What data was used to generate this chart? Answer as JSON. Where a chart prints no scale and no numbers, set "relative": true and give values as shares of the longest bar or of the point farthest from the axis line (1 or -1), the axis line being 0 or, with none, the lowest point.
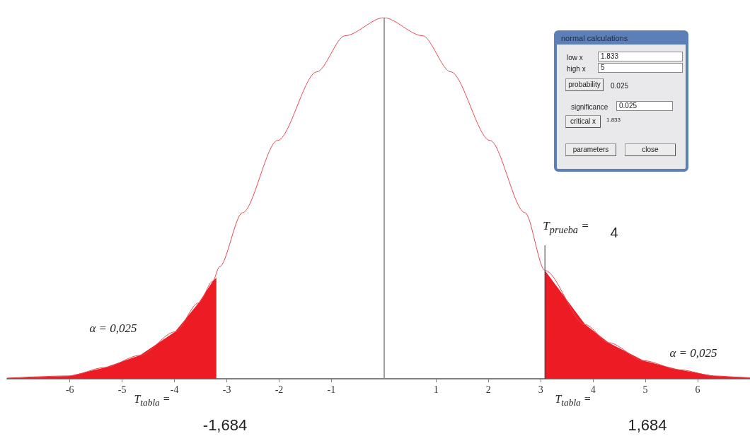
{
  "chart_data": {
    "type": "line",
    "relative": true,
    "xlim": [
      -7.2,
      7
    ],
    "xticks": [
      -6,
      -5,
      -4,
      -3,
      -2,
      -1,
      1,
      2,
      3,
      4,
      5,
      6
    ],
    "grid": false,
    "marker": "none",
    "series": [
      {
        "color": "#e8474f",
        "x": [
          -7.2,
          -6.01,
          -5.34,
          -4.66,
          -3.99,
          -3.54,
          -3.27,
          -3.14,
          -2.7,
          -2.03,
          -1.28,
          -0.74,
          0,
          0.74,
          1.28,
          2.03,
          2.7,
          3.08,
          3.85,
          4.3,
          4.97,
          5.65,
          6.32,
          6.86,
          7
        ],
        "values": [
          0.002,
          0.008,
          0.031,
          0.065,
          0.13,
          0.21,
          0.27,
          0.31,
          0.46,
          0.66,
          0.85,
          0.95,
          1,
          0.95,
          0.85,
          0.66,
          0.46,
          0.3,
          0.15,
          0.1,
          0.05,
          0.025,
          0.008,
          0.004,
          0.003
        ]
      },
      {
        "type": "area",
        "color": "#ed1c24",
        "x": [
          -7.2,
          -6.01,
          -5.34,
          -4.66,
          -3.99,
          -3.54,
          -3.27,
          -3.2
        ],
        "values": [
          0.002,
          0.008,
          0.031,
          0.065,
          0.13,
          0.21,
          0.27,
          0.28
        ]
      },
      {
        "type": "area",
        "color": "#ed1c24",
        "x": [
          3.08,
          3.85,
          4.3,
          4.97,
          5.65,
          6.32,
          6.86,
          7
        ],
        "values": [
          0.3,
          0.15,
          0.1,
          0.05,
          0.025,
          0.008,
          0.004,
          0.003
        ]
      },
      {
        "type": "line",
        "color": "#333333",
        "x": [
          3.08,
          3.08
        ],
        "values": [
          0,
          0.37
        ]
      }
    ],
    "ref_lines": [
      {
        "axis": "x",
        "value": 0,
        "color": "#808080"
      }
    ],
    "annotations": [
      "α = 0,025",
      "α = 0,025",
      "T$_{prueba}$ =",
      "4",
      "T$_{tabla}$ =",
      "-1,684",
      "T$_{tabla}$ =",
      "1,684",
      "normal calculations",
      "low x",
      "1.833",
      "high x",
      "5",
      "probability",
      "0.025",
      "significance",
      "0.025",
      "critical x",
      "1.833",
      "parameters",
      "close"
    ]
  }
}
